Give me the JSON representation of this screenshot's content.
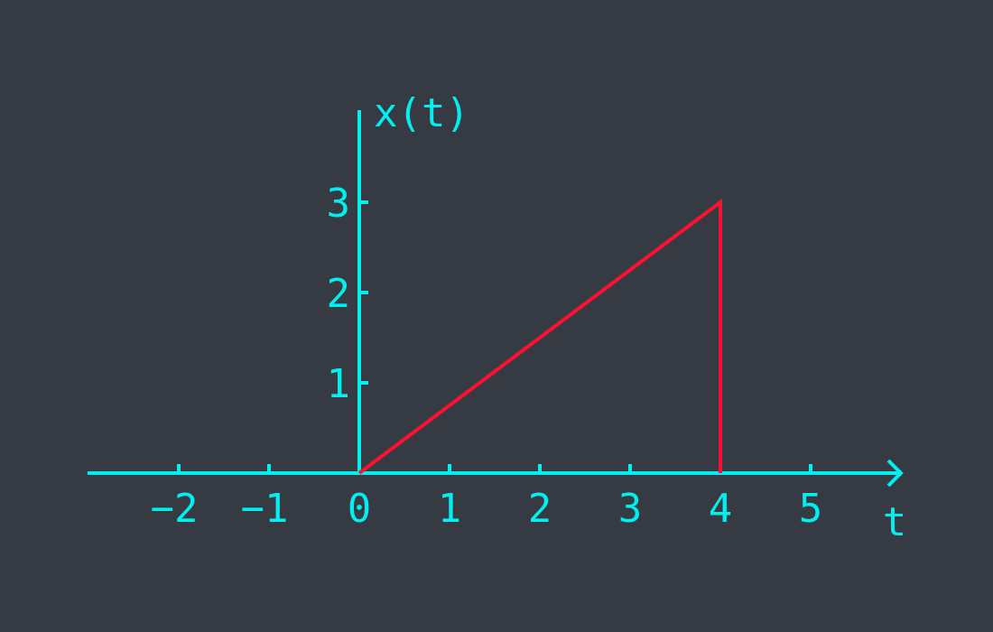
{
  "chart_data": {
    "type": "line",
    "title": "",
    "xlabel": "t",
    "ylabel": "x(t)",
    "xlim": [
      -3,
      6
    ],
    "ylim": [
      0,
      4
    ],
    "x_ticks": [
      -2,
      -1,
      0,
      1,
      2,
      3,
      4,
      5
    ],
    "y_ticks": [
      1,
      2,
      3
    ],
    "x_tick_labels": [
      "−2",
      "−1",
      "0",
      "1",
      "2",
      "3",
      "4",
      "5"
    ],
    "y_tick_labels": [
      "1",
      "2",
      "3"
    ],
    "grid": false,
    "series": [
      {
        "x": [
          0,
          4,
          4
        ],
        "y": [
          0,
          3,
          0
        ]
      }
    ],
    "colors": {
      "background": "#363a42",
      "axis": "#00f0f0",
      "signal": "#ff1030"
    }
  }
}
